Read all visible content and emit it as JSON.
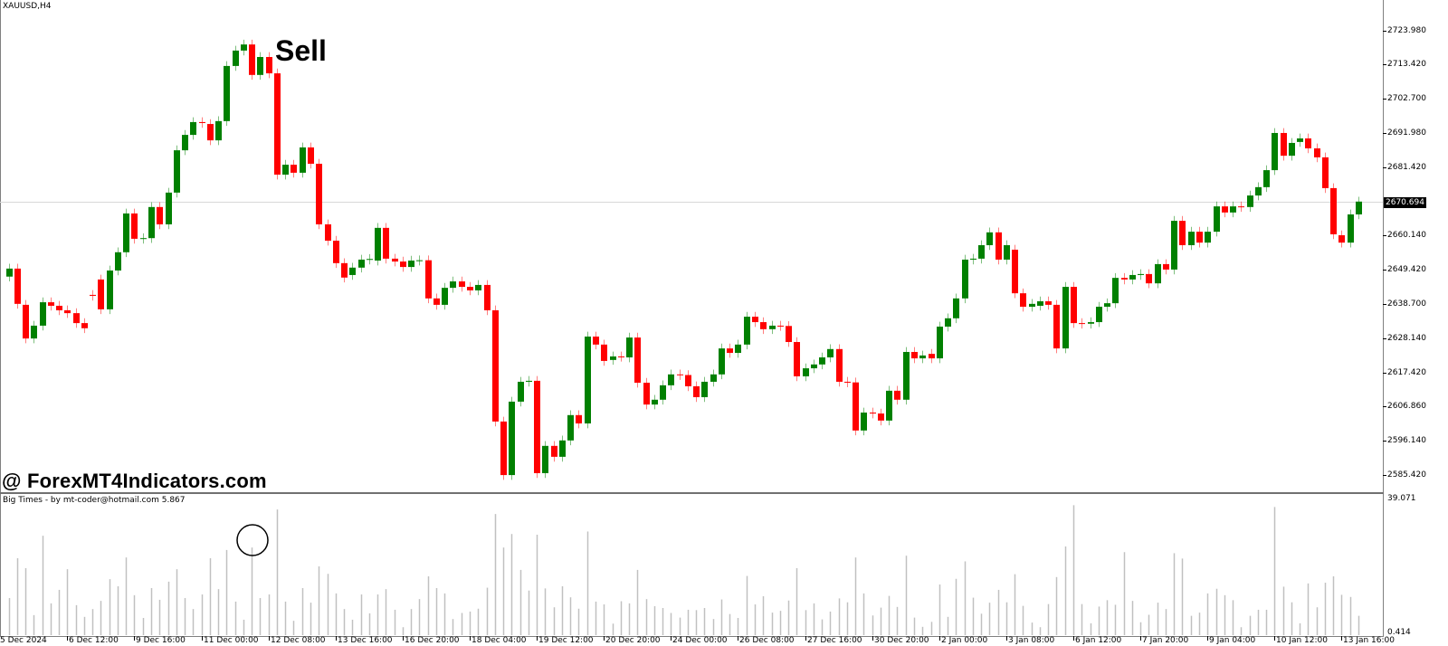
{
  "header": {
    "symbol_label": "XAUUSD,H4"
  },
  "annotations": {
    "signal_text": "Sell",
    "watermark": "@ ForexMT4Indicators.com"
  },
  "indicator": {
    "title": "Big Times - by mt-coder@hotmail.com 5.867",
    "axis_max_label": "39.071",
    "axis_min_label": "0.414"
  },
  "colors": {
    "bull": "#008000",
    "bear": "#ff0000",
    "indicator_bar": "#c0c0c0",
    "ask_line": "#d8d8d8",
    "background": "#ffffff"
  },
  "chart_data": [
    {
      "type": "candlestick",
      "title": "XAUUSD,H4",
      "ylim": [
        2585.42,
        2723.98
      ],
      "current_price": 2670.694,
      "current_price_label": "2670.694",
      "y_tick_labels": [
        "2723.980",
        "2713.420",
        "2702.700",
        "2691.980",
        "2681.420",
        "2660.140",
        "2649.420",
        "2638.700",
        "2628.140",
        "2617.420",
        "2606.860",
        "2596.140",
        "2585.420"
      ],
      "x_tick_labels": [
        "5 Dec 2024",
        "6 Dec 12:00",
        "9 Dec 16:00",
        "11 Dec 00:00",
        "12 Dec 08:00",
        "13 Dec 16:00",
        "16 Dec 20:00",
        "18 Dec 04:00",
        "19 Dec 12:00",
        "20 Dec 20:00",
        "24 Dec 00:00",
        "26 Dec 08:00",
        "27 Dec 16:00",
        "30 Dec 20:00",
        "2 Jan 00:00",
        "3 Jan 08:00",
        "6 Jan 12:00",
        "7 Jan 20:00",
        "9 Jan 04:00",
        "10 Jan 12:00",
        "13 Jan 16:00"
      ],
      "grid": false,
      "ohlc_open_close": [
        [
          2647.3,
          2649.8
        ],
        [
          2649.8,
          2638.8
        ],
        [
          2638.5,
          2628.0
        ],
        [
          2628.0,
          2632.0
        ],
        [
          2632.0,
          2639.3
        ],
        [
          2639.3,
          2638.2
        ],
        [
          2638.2,
          2636.8
        ],
        [
          2636.8,
          2635.9
        ],
        [
          2635.9,
          2632.8
        ],
        [
          2632.8,
          2631.2
        ],
        [
          2641.6,
          2641.3
        ],
        [
          2646.4,
          2637.1
        ],
        [
          2637.1,
          2649.2
        ],
        [
          2649.2,
          2654.9
        ],
        [
          2654.9,
          2667.0
        ],
        [
          2667.0,
          2659.1
        ],
        [
          2659.1,
          2659.3
        ],
        [
          2659.3,
          2669.0
        ],
        [
          2669.0,
          2663.6
        ],
        [
          2663.6,
          2673.5
        ],
        [
          2673.5,
          2686.7
        ],
        [
          2686.7,
          2691.5
        ],
        [
          2691.5,
          2695.5
        ],
        [
          2695.5,
          2695.2
        ],
        [
          2694.9,
          2689.8
        ],
        [
          2689.8,
          2695.8
        ],
        [
          2695.8,
          2713.0
        ],
        [
          2713.0,
          2717.8
        ],
        [
          2717.8,
          2719.7
        ],
        [
          2719.7,
          2710.2
        ],
        [
          2710.2,
          2715.8
        ],
        [
          2715.8,
          2710.7
        ],
        [
          2710.7,
          2679.1
        ],
        [
          2679.1,
          2682.2
        ],
        [
          2682.2,
          2679.7
        ],
        [
          2679.7,
          2687.6
        ],
        [
          2687.6,
          2682.5
        ],
        [
          2682.5,
          2663.6
        ],
        [
          2663.6,
          2658.5
        ],
        [
          2658.5,
          2651.5
        ],
        [
          2651.5,
          2647.0
        ],
        [
          2647.8,
          2650.1
        ],
        [
          2650.1,
          2652.6
        ],
        [
          2652.6,
          2652.8
        ],
        [
          2652.3,
          2662.5
        ],
        [
          2662.5,
          2652.9
        ],
        [
          2652.9,
          2652.0
        ],
        [
          2652.0,
          2650.3
        ],
        [
          2650.3,
          2652.3
        ],
        [
          2652.3,
          2652.4
        ],
        [
          2652.4,
          2640.5
        ],
        [
          2640.5,
          2638.5
        ],
        [
          2638.5,
          2643.8
        ],
        [
          2643.8,
          2645.8
        ],
        [
          2645.8,
          2644.1
        ],
        [
          2644.1,
          2643.0
        ],
        [
          2643.0,
          2644.7
        ],
        [
          2644.7,
          2636.8
        ],
        [
          2636.8,
          2602.1
        ],
        [
          2602.1,
          2585.4
        ],
        [
          2585.4,
          2608.3
        ],
        [
          2608.3,
          2614.5
        ],
        [
          2614.5,
          2614.8
        ],
        [
          2614.8,
          2586.0
        ],
        [
          2586.0,
          2594.5
        ],
        [
          2594.5,
          2591.1
        ],
        [
          2591.1,
          2596.2
        ],
        [
          2596.2,
          2604.1
        ],
        [
          2604.1,
          2601.5
        ],
        [
          2601.5,
          2628.6
        ],
        [
          2628.6,
          2626.1
        ],
        [
          2626.1,
          2621.0
        ],
        [
          2621.3,
          2622.4
        ],
        [
          2622.4,
          2622.3
        ],
        [
          2622.1,
          2628.3
        ],
        [
          2628.3,
          2614.2
        ],
        [
          2614.2,
          2607.4
        ],
        [
          2607.4,
          2608.9
        ],
        [
          2608.9,
          2613.4
        ],
        [
          2613.4,
          2616.8
        ],
        [
          2616.8,
          2616.6
        ],
        [
          2616.6,
          2613.1
        ],
        [
          2613.1,
          2609.7
        ],
        [
          2609.7,
          2614.5
        ],
        [
          2614.5,
          2616.8
        ],
        [
          2616.8,
          2624.9
        ],
        [
          2624.9,
          2623.5
        ],
        [
          2623.5,
          2626.1
        ],
        [
          2626.1,
          2634.8
        ],
        [
          2634.8,
          2633.1
        ],
        [
          2633.1,
          2630.9
        ],
        [
          2630.9,
          2632.0
        ],
        [
          2632.0,
          2631.9
        ],
        [
          2631.9,
          2626.9
        ],
        [
          2626.9,
          2616.2
        ],
        [
          2616.2,
          2618.7
        ],
        [
          2618.7,
          2619.9
        ],
        [
          2619.9,
          2622.1
        ],
        [
          2622.1,
          2624.7
        ],
        [
          2624.7,
          2614.5
        ],
        [
          2614.5,
          2614.3
        ],
        [
          2614.3,
          2599.3
        ],
        [
          2599.3,
          2604.9
        ],
        [
          2604.9,
          2604.6
        ],
        [
          2604.6,
          2602.4
        ],
        [
          2602.4,
          2611.7
        ],
        [
          2611.7,
          2608.9
        ],
        [
          2608.9,
          2623.8
        ],
        [
          2623.8,
          2621.8
        ],
        [
          2621.8,
          2622.7
        ],
        [
          2623.2,
          2621.8
        ],
        [
          2621.8,
          2631.7
        ],
        [
          2631.7,
          2634.3
        ],
        [
          2634.3,
          2640.5
        ],
        [
          2640.5,
          2652.6
        ],
        [
          2652.6,
          2652.9
        ],
        [
          2652.9,
          2657.1
        ],
        [
          2657.1,
          2661.1
        ],
        [
          2661.1,
          2652.6
        ],
        [
          2652.6,
          2657.1
        ],
        [
          2655.7,
          2642.1
        ],
        [
          2642.1,
          2637.9
        ],
        [
          2637.9,
          2638.8
        ],
        [
          2638.2,
          2639.6
        ],
        [
          2639.6,
          2638.5
        ],
        [
          2638.5,
          2624.9
        ],
        [
          2624.9,
          2644.1
        ],
        [
          2644.1,
          2632.8
        ],
        [
          2632.8,
          2632.6
        ],
        [
          2632.6,
          2633.1
        ],
        [
          2633.1,
          2637.9
        ],
        [
          2637.9,
          2639.0
        ],
        [
          2639.0,
          2646.9
        ],
        [
          2646.9,
          2646.4
        ],
        [
          2646.4,
          2647.8
        ],
        [
          2647.8,
          2648.1
        ],
        [
          2648.1,
          2645.2
        ],
        [
          2645.2,
          2651.2
        ],
        [
          2651.2,
          2649.5
        ],
        [
          2649.5,
          2664.7
        ],
        [
          2664.7,
          2657.1
        ],
        [
          2657.1,
          2661.3
        ],
        [
          2661.3,
          2657.9
        ],
        [
          2657.9,
          2661.3
        ],
        [
          2661.3,
          2669.2
        ],
        [
          2669.2,
          2667.3
        ],
        [
          2667.3,
          2669.2
        ],
        [
          2669.2,
          2669.0
        ],
        [
          2669.0,
          2672.6
        ],
        [
          2672.6,
          2675.2
        ],
        [
          2675.2,
          2680.5
        ],
        [
          2680.5,
          2692.1
        ],
        [
          2692.1,
          2685.0
        ],
        [
          2685.0,
          2689.0
        ],
        [
          2689.3,
          2690.4
        ],
        [
          2690.4,
          2687.3
        ],
        [
          2687.3,
          2684.5
        ],
        [
          2684.5,
          2674.9
        ],
        [
          2674.9,
          2660.5
        ],
        [
          2660.2,
          2657.9
        ],
        [
          2657.9,
          2666.7
        ],
        [
          2666.7,
          2670.7
        ]
      ]
    },
    {
      "type": "bar",
      "title": "Big Times - by mt-coder@hotmail.com 5.867",
      "ylim": [
        0.414,
        39.071
      ],
      "highlighted_bar_index": 29,
      "values": [
        11.1,
        22.3,
        19.5,
        6.3,
        28.6,
        9.6,
        13.4,
        19.2,
        9.1,
        5.8,
        8.0,
        10.3,
        16.4,
        14.4,
        22.5,
        11.9,
        5.5,
        13.9,
        10.6,
        15.7,
        19.2,
        11.1,
        8.0,
        12.1,
        22.3,
        13.6,
        24.6,
        10.1,
        5.0,
        25.3,
        11.1,
        12.1,
        36.0,
        10.1,
        4.7,
        13.9,
        9.8,
        20.0,
        17.9,
        12.4,
        8.0,
        5.0,
        12.1,
        6.8,
        12.1,
        13.6,
        7.8,
        2.9,
        8.0,
        10.8,
        17.2,
        13.9,
        12.4,
        5.2,
        6.9,
        7.3,
        8.1,
        14.0,
        34.7,
        25.3,
        29.1,
        19.0,
        13.2,
        28.9,
        13.8,
        8.5,
        14.4,
        11.3,
        8.1,
        29.8,
        10.1,
        9.3,
        3.9,
        10.2,
        9.6,
        19.0,
        10.8,
        8.8,
        8.3,
        6.9,
        5.6,
        7.8,
        7.7,
        8.3,
        5.2,
        10.7,
        6.6,
        5.5,
        17.3,
        9.3,
        11.6,
        7.0,
        7.5,
        10.4,
        19.5,
        7.7,
        9.6,
        5.1,
        7.3,
        11.0,
        9.9,
        22.5,
        12.4,
        6.2,
        8.4,
        11.7,
        8.6,
        23.0,
        5.6,
        3.0,
        4.4,
        14.9,
        5.8,
        16.5,
        21.4,
        11.2,
        6.7,
        9.8,
        13.4,
        9.9,
        17.8,
        8.9,
        4.2,
        2.9,
        9.4,
        17.0,
        25.6,
        37.2,
        9.4,
        4.0,
        8.7,
        10.5,
        9.2,
        24.0,
        10.3,
        4.3,
        6.4,
        9.8,
        8.0,
        23.7,
        22.2,
        6.1,
        7.0,
        12.4,
        13.7,
        11.9,
        10.5,
        2.9,
        6.1,
        7.8,
        7.8,
        36.7,
        14.3,
        9.9,
        4.0,
        15.2,
        8.5,
        15.4,
        17.2,
        12.0,
        11.4,
        6.1
      ]
    }
  ]
}
